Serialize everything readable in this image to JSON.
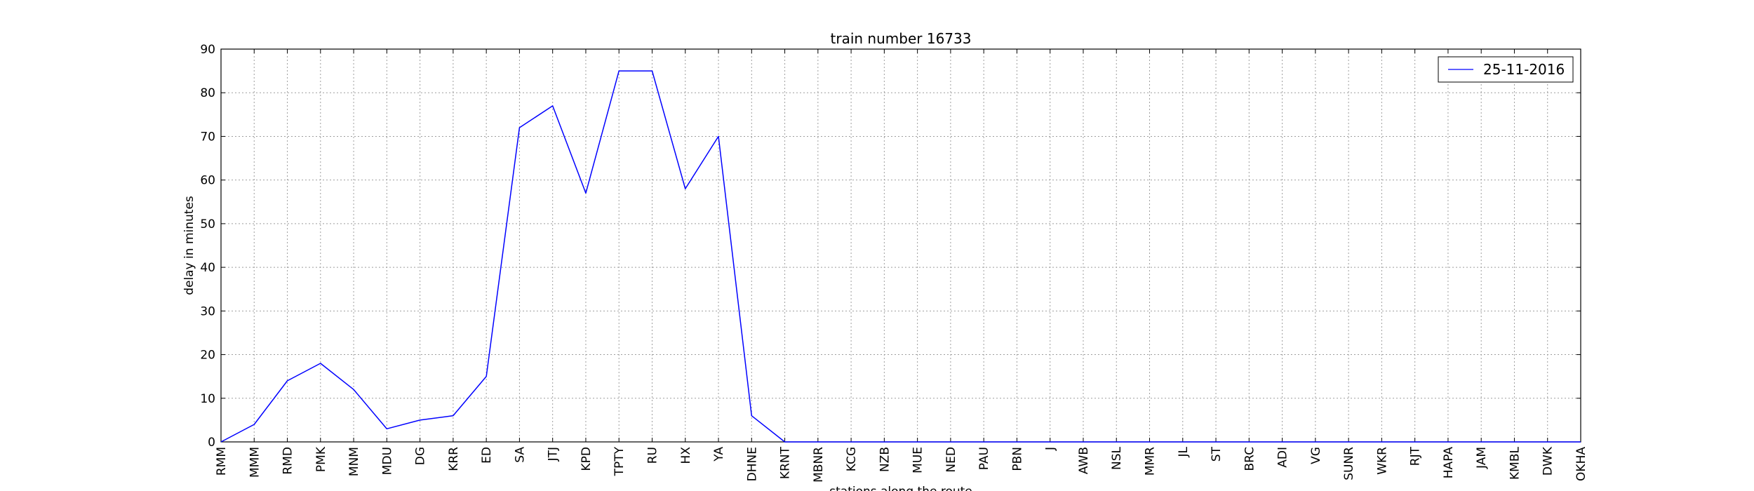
{
  "chart_data": {
    "type": "line",
    "title": "train number 16733",
    "xlabel": "stations along the route",
    "ylabel": "delay in minutes",
    "ylim": [
      0,
      90
    ],
    "yticks": [
      0,
      10,
      20,
      30,
      40,
      50,
      60,
      70,
      80,
      90
    ],
    "grid": true,
    "legend_position": "top-right",
    "categories": [
      "RMM",
      "MMM",
      "RMD",
      "PMK",
      "MNM",
      "MDU",
      "DG",
      "KRR",
      "ED",
      "SA",
      "JTJ",
      "KPD",
      "TPTY",
      "RU",
      "HX",
      "YA",
      "DHNE",
      "KRNT",
      "MBNR",
      "KCG",
      "NZB",
      "MUE",
      "NED",
      "PAU",
      "PBN",
      "J",
      "AWB",
      "NSL",
      "MMR",
      "JL",
      "ST",
      "BRC",
      "ADI",
      "VG",
      "SUNR",
      "WKR",
      "RJT",
      "HAPA",
      "JAM",
      "KMBL",
      "DWK",
      "OKHA"
    ],
    "series": [
      {
        "name": "25-11-2016",
        "color": "#0000ff",
        "values": [
          0,
          4,
          14,
          18,
          12,
          3,
          5,
          6,
          15,
          72,
          77,
          57,
          85,
          85,
          58,
          70,
          6,
          0,
          0,
          0,
          0,
          0,
          0,
          0,
          0,
          0,
          0,
          0,
          0,
          0,
          0,
          0,
          0,
          0,
          0,
          0,
          0,
          0,
          0,
          0,
          0,
          0
        ]
      }
    ]
  }
}
